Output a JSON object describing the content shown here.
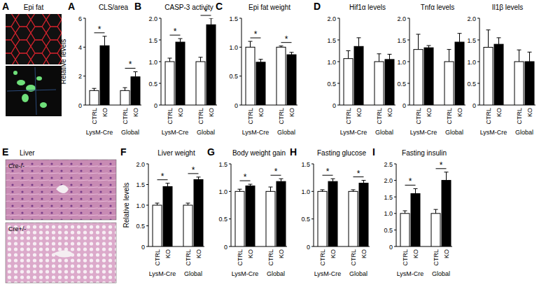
{
  "chart_data": [
    {
      "type": "bar",
      "panel": "A",
      "title": "CLS/area",
      "y_label": "Relative levels",
      "categories": [
        "CTRL",
        "KO",
        "CTRL",
        "KO"
      ],
      "groups": [
        "LysM-Cre",
        "Global"
      ],
      "values": [
        1.0,
        4.1,
        1.0,
        1.95
      ],
      "errors": [
        0.15,
        0.65,
        0.2,
        0.35
      ],
      "colors": [
        "#ffffff",
        "#000000",
        "#ffffff",
        "#000000"
      ],
      "ylim": [
        0,
        6
      ],
      "yticks": [
        0,
        2,
        4,
        6
      ],
      "annotations": [
        "*",
        "*"
      ]
    },
    {
      "type": "bar",
      "panel": "B",
      "title": "CASP-3 activity",
      "categories": [
        "CTRL",
        "KO",
        "CTRL",
        "KO"
      ],
      "groups": [
        "LysM-Cre",
        "Global"
      ],
      "values": [
        1.0,
        1.45,
        1.0,
        1.85
      ],
      "errors": [
        0.08,
        0.08,
        0.1,
        0.15
      ],
      "colors": [
        "#ffffff",
        "#000000",
        "#ffffff",
        "#000000"
      ],
      "ylim": [
        0,
        2
      ],
      "yticks": [
        0,
        0.5,
        {
          "value": 1,
          "label": "1.0"
        },
        1.5,
        {
          "value": 2,
          "label": "2.0"
        }
      ],
      "annotations": [
        "*",
        "*"
      ]
    },
    {
      "type": "bar",
      "panel": "C",
      "title": "Epi fat weight",
      "categories": [
        "CTRL",
        "KO",
        "CTRL",
        "KO"
      ],
      "groups": [
        "LysM-Cre",
        "Global"
      ],
      "values": [
        1.0,
        0.74,
        1.0,
        0.87
      ],
      "errors": [
        0.1,
        0.05,
        0.02,
        0.04
      ],
      "colors": [
        "#ffffff",
        "#000000",
        "#ffffff",
        "#000000"
      ],
      "ylim": [
        0,
        1.5
      ],
      "yticks": [
        0,
        0.5,
        {
          "value": 1,
          "label": "1.0"
        },
        1.5
      ],
      "annotations": [
        "*",
        "*"
      ]
    },
    {
      "type": "bar",
      "panel": "D",
      "title": "Hif1α levels",
      "categories": [
        "CTRL",
        "KO",
        "CTRL",
        "KO"
      ],
      "groups": [
        "LysM-Cre",
        "Global"
      ],
      "values": [
        1.07,
        1.35,
        1.0,
        1.05
      ],
      "errors": [
        0.18,
        0.2,
        0.18,
        0.12
      ],
      "colors": [
        "#ffffff",
        "#000000",
        "#ffffff",
        "#000000"
      ],
      "ylim": [
        0,
        2
      ],
      "yticks": [
        0,
        0.5,
        {
          "value": 1,
          "label": "1.0"
        },
        1.5,
        {
          "value": 2,
          "label": "2.0"
        }
      ]
    },
    {
      "type": "bar",
      "title": "Tnfα levels",
      "categories": [
        "CTRL",
        "KO",
        "CTRL",
        "KO"
      ],
      "groups": [
        "LysM-Cre",
        "Global"
      ],
      "values": [
        1.28,
        1.32,
        1.0,
        1.45
      ],
      "errors": [
        0.35,
        0.05,
        0.28,
        0.2
      ],
      "colors": [
        "#ffffff",
        "#000000",
        "#ffffff",
        "#000000"
      ],
      "ylim": [
        0,
        2
      ],
      "yticks": [
        0,
        0.5,
        {
          "value": 1,
          "label": "1.0"
        },
        1.5,
        {
          "value": 2,
          "label": "2.0"
        }
      ]
    },
    {
      "type": "bar",
      "title": "Il1β levels",
      "categories": [
        "CTRL",
        "KO",
        "CTRL",
        "KO"
      ],
      "groups": [
        "LysM-Cre",
        "Global"
      ],
      "values": [
        1.33,
        1.4,
        1.0,
        1.0
      ],
      "errors": [
        0.4,
        0.15,
        0.27,
        0.22
      ],
      "colors": [
        "#ffffff",
        "#000000",
        "#ffffff",
        "#000000"
      ],
      "ylim": [
        0,
        2
      ],
      "yticks": [
        0,
        0.5,
        {
          "value": 1,
          "label": "1.0"
        },
        1.5,
        {
          "value": 2,
          "label": "2.0"
        }
      ]
    },
    {
      "type": "bar",
      "panel": "F",
      "title": "Liver weight",
      "y_label": "Relative levels",
      "categories": [
        "CTRL",
        "KO",
        "CTRL",
        "KO"
      ],
      "groups": [
        "LysM-Cre",
        "Global"
      ],
      "values": [
        1.0,
        1.45,
        1.0,
        1.62
      ],
      "errors": [
        0.05,
        0.08,
        0.05,
        0.06
      ],
      "colors": [
        "#ffffff",
        "#000000",
        "#ffffff",
        "#000000"
      ],
      "ylim": [
        0,
        2
      ],
      "yticks": [
        0,
        0.5,
        {
          "value": 1,
          "label": "1.0"
        },
        1.5,
        {
          "value": 2,
          "label": "2.0"
        }
      ],
      "annotations": [
        "*",
        "*"
      ]
    },
    {
      "type": "bar",
      "panel": "G",
      "title": "Body weight gain",
      "categories": [
        "CTRL",
        "KO",
        "CTRL",
        "KO"
      ],
      "groups": [
        "LysM-Cre",
        "Global"
      ],
      "values": [
        1.0,
        1.1,
        1.0,
        1.18
      ],
      "errors": [
        0.04,
        0.03,
        0.08,
        0.05
      ],
      "colors": [
        "#ffffff",
        "#000000",
        "#ffffff",
        "#000000"
      ],
      "ylim": [
        0,
        1.5
      ],
      "yticks": [
        0,
        0.5,
        {
          "value": 1,
          "label": "1.0"
        },
        1.5
      ],
      "annotations": [
        "*",
        "*"
      ]
    },
    {
      "type": "bar",
      "panel": "H",
      "title": "Fasting glucose",
      "categories": [
        "CTRL",
        "KO",
        "CTRL",
        "KO"
      ],
      "groups": [
        "LysM-Cre",
        "Global"
      ],
      "values": [
        1.0,
        1.18,
        1.0,
        1.15
      ],
      "errors": [
        0.03,
        0.05,
        0.03,
        0.05
      ],
      "colors": [
        "#ffffff",
        "#000000",
        "#ffffff",
        "#000000"
      ],
      "ylim": [
        0,
        1.5
      ],
      "yticks": [
        0,
        0.5,
        {
          "value": 1,
          "label": "1.0"
        },
        1.5
      ],
      "annotations": [
        "*",
        "*"
      ]
    },
    {
      "type": "bar",
      "panel": "I",
      "title": "Fasting insulin",
      "categories": [
        "CTRL",
        "KO",
        "CTRL",
        "KO"
      ],
      "groups": [
        "LysM-Cre",
        "Global"
      ],
      "values": [
        1.0,
        1.6,
        1.0,
        2.0
      ],
      "errors": [
        0.08,
        0.15,
        0.12,
        0.25
      ],
      "colors": [
        "#ffffff",
        "#000000",
        "#ffffff",
        "#000000"
      ],
      "ylim": [
        0,
        2.5
      ],
      "yticks": [
        0,
        0.5,
        {
          "value": 1,
          "label": "1.0"
        },
        1.5,
        {
          "value": 2,
          "label": "2.0"
        },
        2.5
      ],
      "annotations": [
        "*",
        "*"
      ]
    }
  ],
  "image_panels": [
    {
      "panel": "A",
      "title": "Epi fat"
    },
    {
      "panel": "E",
      "title": "Liver",
      "captions": [
        "Cre-/-",
        "Cre+/-"
      ]
    }
  ]
}
